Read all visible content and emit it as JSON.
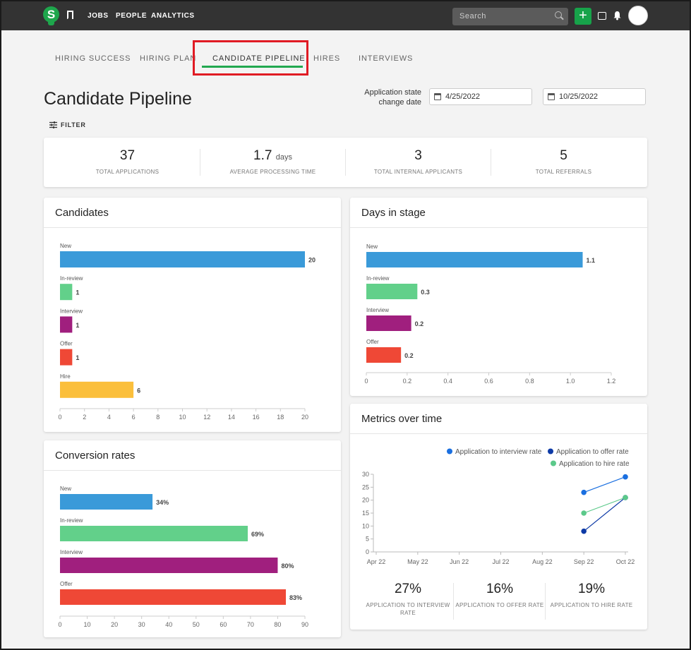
{
  "topbar": {
    "logo_letter": "S",
    "nav": [
      {
        "label": "JOBS"
      },
      {
        "label": "PEOPLE"
      },
      {
        "label": "ANALYTICS"
      }
    ],
    "search_placeholder": "Search",
    "add_label": "+"
  },
  "tabs": [
    {
      "label": "HIRING SUCCESS"
    },
    {
      "label": "HIRING PLAN"
    },
    {
      "label": "CANDIDATE PIPELINE",
      "active": true
    },
    {
      "label": "HIRES"
    },
    {
      "label": "INTERVIEWS"
    }
  ],
  "page": {
    "title": "Candidate Pipeline",
    "date_label_line1": "Application state",
    "date_label_line2": "change date",
    "start_date": "4/25/2022",
    "end_date": "10/25/2022",
    "filter_label": "FILTER"
  },
  "stats": [
    {
      "value": "37",
      "unit": "",
      "label": "TOTAL APPLICATIONS"
    },
    {
      "value": "1.7",
      "unit": "days",
      "label": "AVERAGE PROCESSING TIME"
    },
    {
      "value": "3",
      "unit": "",
      "label": "TOTAL INTERNAL APPLICANTS"
    },
    {
      "value": "5",
      "unit": "",
      "label": "TOTAL REFERRALS"
    }
  ],
  "cards": {
    "candidates_title": "Candidates",
    "days_title": "Days in stage",
    "conversion_title": "Conversion rates",
    "metrics_title": "Metrics over time"
  },
  "colors": {
    "new": "#3a9ad9",
    "in_review": "#62d08a",
    "interview": "#a01f7e",
    "offer": "#ef4836",
    "hire": "#fbbf3b",
    "interview_rate": "#1a6fe0",
    "offer_rate": "#0d3aa6",
    "hire_rate": "#5bc98a"
  },
  "chart_data": [
    {
      "type": "bar",
      "title": "Candidates",
      "categories": [
        "New",
        "In-review",
        "Interview",
        "Offer",
        "Hire"
      ],
      "values": [
        20,
        1,
        1,
        1,
        6
      ],
      "value_labels": [
        "20",
        "1",
        "1",
        "1",
        "6"
      ],
      "xlim": [
        0,
        20
      ],
      "ticks": [
        0,
        2,
        4,
        6,
        8,
        10,
        12,
        14,
        16,
        18,
        20
      ]
    },
    {
      "type": "bar",
      "title": "Days in stage",
      "categories": [
        "New",
        "In-review",
        "Interview",
        "Offer"
      ],
      "values": [
        1.06,
        0.25,
        0.22,
        0.17
      ],
      "value_labels": [
        "1.1",
        "0.3",
        "0.2",
        "0.2"
      ],
      "xlim": [
        0,
        1.2
      ],
      "ticks": [
        "0",
        "0.2",
        "0.4",
        "0.6",
        "0.8",
        "1.0",
        "1.2"
      ]
    },
    {
      "type": "bar",
      "title": "Conversion rates",
      "categories": [
        "New",
        "In-review",
        "Interview",
        "Offer"
      ],
      "values": [
        34,
        69,
        80,
        83
      ],
      "value_labels": [
        "34%",
        "69%",
        "80%",
        "83%"
      ],
      "xlim": [
        0,
        90
      ],
      "ticks": [
        0,
        10,
        20,
        30,
        40,
        50,
        60,
        70,
        80,
        90
      ]
    },
    {
      "type": "line",
      "title": "Metrics over time",
      "x": [
        "Apr 22",
        "May 22",
        "Jun 22",
        "Jul 22",
        "Aug 22",
        "Sep 22",
        "Oct 22"
      ],
      "ylim": [
        0,
        30
      ],
      "yticks": [
        0,
        5,
        10,
        15,
        20,
        25,
        30
      ],
      "legend": "top-right",
      "series": [
        {
          "name": "Application to interview rate",
          "points": [
            {
              "x": "Sep 22",
              "y": 23
            },
            {
              "x": "Oct 22",
              "y": 29
            }
          ]
        },
        {
          "name": "Application to offer rate",
          "points": [
            {
              "x": "Sep 22",
              "y": 8
            },
            {
              "x": "Oct 22",
              "y": 21
            }
          ]
        },
        {
          "name": "Application to hire rate",
          "points": [
            {
              "x": "Sep 22",
              "y": 15
            },
            {
              "x": "Oct 22",
              "y": 21
            }
          ]
        }
      ]
    }
  ],
  "metrics_summary": [
    {
      "value": "27%",
      "label": "APPLICATION TO INTERVIEW RATE"
    },
    {
      "value": "16%",
      "label": "APPLICATION TO OFFER RATE"
    },
    {
      "value": "19%",
      "label": "APPLICATION TO HIRE RATE"
    }
  ]
}
